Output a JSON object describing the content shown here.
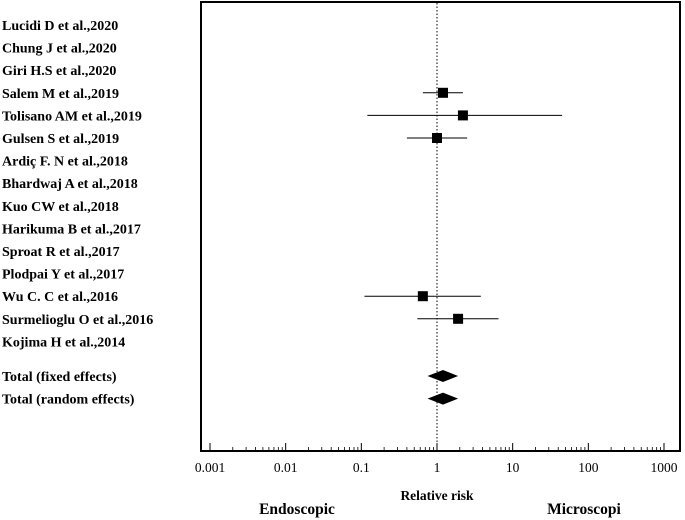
{
  "chart_data": {
    "type": "forest",
    "scale": "log",
    "xlabel": "Relative risk",
    "xlim": [
      0.001,
      1000
    ],
    "reference_line": 1,
    "x_ticks": [
      0.001,
      0.01,
      0.1,
      1,
      10,
      100,
      1000
    ],
    "x_tick_labels": [
      "0.001",
      "0.01",
      "0.1",
      "1",
      "10",
      "100",
      "1000"
    ],
    "left_label": "Endoscopic",
    "right_label": "Microscopi",
    "studies": [
      {
        "label": "Lucidi D et al.,2020",
        "rr": null,
        "lo": null,
        "hi": null
      },
      {
        "label": "Chung J et al.,2020",
        "rr": null,
        "lo": null,
        "hi": null
      },
      {
        "label": "Giri H.S et al.,2020",
        "rr": null,
        "lo": null,
        "hi": null
      },
      {
        "label": "Salem M et al.,2019",
        "rr": 1.2,
        "lo": 0.65,
        "hi": 2.2
      },
      {
        "label": "Tolisano AM et al.,2019",
        "rr": 2.2,
        "lo": 0.12,
        "hi": 45
      },
      {
        "label": "Gulsen S et al.,2019",
        "rr": 1.0,
        "lo": 0.4,
        "hi": 2.5
      },
      {
        "label": "Ardiç F. N et al.,2018",
        "rr": null,
        "lo": null,
        "hi": null
      },
      {
        "label": "Bhardwaj A et al.,2018",
        "rr": null,
        "lo": null,
        "hi": null
      },
      {
        "label": "Kuo CW et al.,2018",
        "rr": null,
        "lo": null,
        "hi": null
      },
      {
        "label": "Harikuma B et al.,2017",
        "rr": null,
        "lo": null,
        "hi": null
      },
      {
        "label": "Sproat R et al.,2017",
        "rr": null,
        "lo": null,
        "hi": null
      },
      {
        "label": "Plodpai Y et al.,2017",
        "rr": null,
        "lo": null,
        "hi": null
      },
      {
        "label": "Wu C. C et al.,2016",
        "rr": 0.65,
        "lo": 0.11,
        "hi": 3.8
      },
      {
        "label": "Surmelioglu O et al.,2016",
        "rr": 1.9,
        "lo": 0.55,
        "hi": 6.5
      },
      {
        "label": "Kojima H et al.,2014",
        "rr": null,
        "lo": null,
        "hi": null
      }
    ],
    "totals": [
      {
        "label": "Total (fixed effects)",
        "rr": 1.2,
        "lo": 0.75,
        "hi": 1.9
      },
      {
        "label": "Total (random effects)",
        "rr": 1.2,
        "lo": 0.75,
        "hi": 1.9
      }
    ]
  }
}
